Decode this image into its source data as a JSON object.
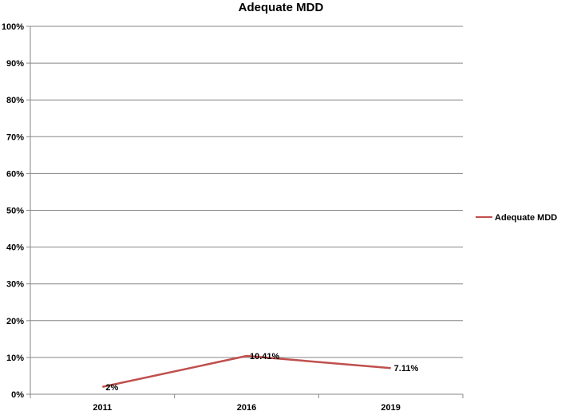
{
  "chart_data": {
    "type": "line",
    "title": "Adequate MDD",
    "categories": [
      "2011",
      "2016",
      "2019"
    ],
    "series": [
      {
        "name": "Adequate MDD",
        "values": [
          2,
          10.41,
          7.11
        ],
        "data_labels": [
          "2%",
          "10.41%",
          "7.11%"
        ]
      }
    ],
    "ylim": [
      0,
      100
    ],
    "yticks": [
      "0%",
      "10%",
      "20%",
      "30%",
      "40%",
      "50%",
      "60%",
      "70%",
      "80%",
      "90%",
      "100%"
    ],
    "grid": true,
    "legend_position": "right",
    "colors": {
      "series": "#c0504d",
      "grid": "#868686",
      "axis": "#868686"
    }
  }
}
